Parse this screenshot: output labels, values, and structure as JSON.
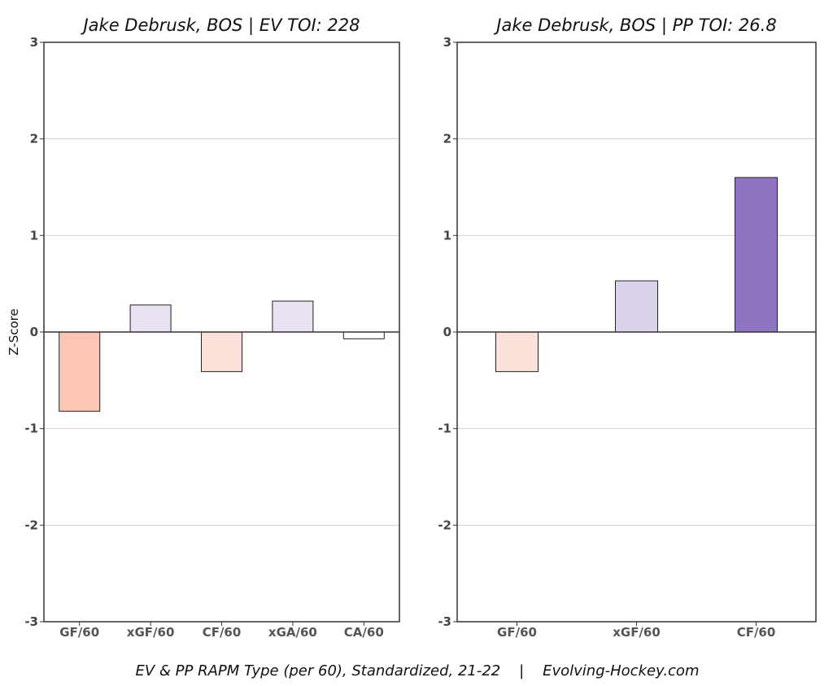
{
  "caption": "EV & PP RAPM Type (per 60), Standardized, 21-22    |    Evolving-Hockey.com",
  "ylabel": "Z-Score",
  "chart_data": [
    {
      "type": "bar",
      "title": "Jake Debrusk, BOS  |  EV TOI: 228",
      "categories": [
        "GF/60",
        "xGF/60",
        "CF/60",
        "xGA/60",
        "CA/60"
      ],
      "values": [
        -0.82,
        0.28,
        -0.41,
        0.32,
        -0.07
      ],
      "colors": [
        "#fcc5b5",
        "#e8e2f2",
        "#fde1db",
        "#e8e2f2",
        "#ffffff"
      ],
      "ylabel": "Z-Score",
      "ylim": [
        -3,
        3
      ],
      "yticks": [
        "-3",
        "-2",
        "-1",
        "0",
        "1",
        "2",
        "3"
      ],
      "grid": true
    },
    {
      "type": "bar",
      "title": "Jake Debrusk, BOS  |  PP TOI: 26.8",
      "categories": [
        "GF/60",
        "xGF/60",
        "CF/60"
      ],
      "values": [
        -0.41,
        0.53,
        1.6
      ],
      "colors": [
        "#fde1db",
        "#dad1eb",
        "#8f74c1"
      ],
      "ylabel": "",
      "ylim": [
        -3,
        3
      ],
      "yticks": [
        "-3",
        "-2",
        "-1",
        "0",
        "1",
        "2",
        "3"
      ],
      "grid": true
    }
  ]
}
